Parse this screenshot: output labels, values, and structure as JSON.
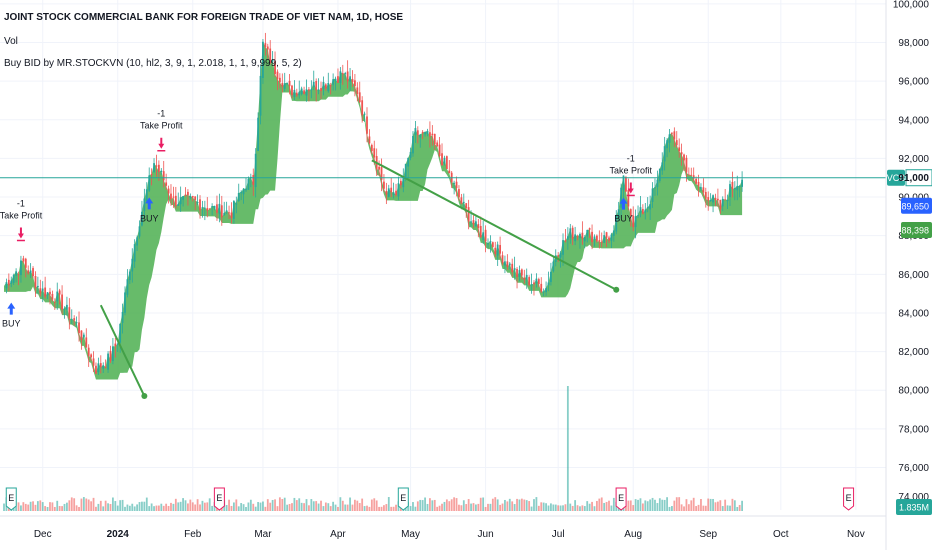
{
  "chart_data": {
    "type": "candlestick",
    "title": "JOINT STOCK COMMERCIAL BANK FOR FOREIGN TRADE OF VIET NAM, 1D, HOSE",
    "legend_lines": [
      "Vol",
      "Buy BID by MR.STOCKVN (10, hl2, 3, 9, 1, 2.018, 1, 1, 9,999, 5, 2)"
    ],
    "y_ticks": [
      76000,
      78000,
      80000,
      82000,
      84000,
      86000,
      88000,
      90000,
      92000,
      94000,
      96000,
      98000,
      100000
    ],
    "y_tick_labels": [
      "76,000",
      "78,000",
      "80,000",
      "82,000",
      "84,000",
      "86,000",
      "88,000",
      "90,000",
      "92,000",
      "94,000",
      "96,000",
      "98,000",
      "100,000"
    ],
    "bottom_tick_label": "74,000",
    "ylim": [
      73800,
      100200
    ],
    "x_ticks": [
      "Dec",
      "2024",
      "Feb",
      "Mar",
      "Apr",
      "May",
      "Jun",
      "Jul",
      "Aug",
      "Sep",
      "Oct",
      "Nov"
    ],
    "x_tick_days": [
      16,
      47,
      78,
      107,
      138,
      168,
      199,
      229,
      260,
      291,
      321,
      352
    ],
    "last_day": 305,
    "close_keypoints": [
      [
        0,
        85400
      ],
      [
        8,
        86600
      ],
      [
        15,
        85200
      ],
      [
        22,
        84800
      ],
      [
        30,
        83400
      ],
      [
        38,
        81100
      ],
      [
        44,
        81700
      ],
      [
        47,
        82600
      ],
      [
        52,
        86400
      ],
      [
        56,
        88800
      ],
      [
        62,
        91800
      ],
      [
        66,
        90900
      ],
      [
        70,
        89800
      ],
      [
        78,
        89800
      ],
      [
        86,
        89400
      ],
      [
        94,
        89200
      ],
      [
        100,
        90700
      ],
      [
        103,
        90800
      ],
      [
        107,
        97900
      ],
      [
        112,
        96600
      ],
      [
        118,
        95500
      ],
      [
        126,
        95700
      ],
      [
        133,
        95900
      ],
      [
        140,
        96400
      ],
      [
        146,
        95500
      ],
      [
        152,
        92600
      ],
      [
        158,
        90100
      ],
      [
        164,
        90500
      ],
      [
        170,
        93300
      ],
      [
        176,
        93100
      ],
      [
        182,
        91700
      ],
      [
        189,
        89700
      ],
      [
        195,
        88400
      ],
      [
        201,
        87700
      ],
      [
        206,
        86900
      ],
      [
        212,
        86000
      ],
      [
        218,
        85600
      ],
      [
        224,
        85300
      ],
      [
        228,
        87100
      ],
      [
        234,
        88100
      ],
      [
        240,
        88200
      ],
      [
        246,
        87800
      ],
      [
        252,
        88000
      ],
      [
        256,
        90900
      ],
      [
        260,
        88700
      ],
      [
        266,
        89600
      ],
      [
        270,
        90700
      ],
      [
        274,
        93200
      ],
      [
        278,
        92800
      ],
      [
        284,
        90900
      ],
      [
        290,
        90200
      ],
      [
        296,
        89400
      ],
      [
        300,
        90400
      ],
      [
        305,
        91000
      ]
    ],
    "buy_signals": [
      {
        "day": 3,
        "label": "BUY"
      },
      {
        "day": 60,
        "label": "BUY"
      },
      {
        "day": 256,
        "label": "BUY"
      }
    ],
    "take_profit": [
      {
        "day": 7,
        "label": "Take Profit",
        "qty": "-1"
      },
      {
        "day": 65,
        "label": "Take Profit",
        "qty": "-1"
      },
      {
        "day": 259,
        "label": "Take Profit",
        "qty": "-1"
      }
    ],
    "trend_segments": [
      [
        [
          40,
          84400
        ],
        [
          58,
          79700
        ]
      ],
      [
        [
          152,
          91900
        ],
        [
          253,
          85200
        ]
      ]
    ],
    "symbol": "VCB",
    "last_price": 91000,
    "last_price_label": "91,000",
    "level_labels": [
      {
        "text": "89,650",
        "value": 89650,
        "color": "#2962ff"
      },
      {
        "text": "88,398",
        "value": 88398,
        "color": "#43a047"
      }
    ],
    "volume_label": "1.835M",
    "volume_spike_day": 233,
    "earnings_days": [
      3,
      89,
      165,
      255,
      349
    ],
    "colors": {
      "up": "#26a69a",
      "down": "#ef5350",
      "cloud": "#4caf50",
      "trend": "#43a047",
      "signal": "#e91e63",
      "buy_arrow": "#2962ff",
      "price_line": "#26a69a"
    }
  }
}
